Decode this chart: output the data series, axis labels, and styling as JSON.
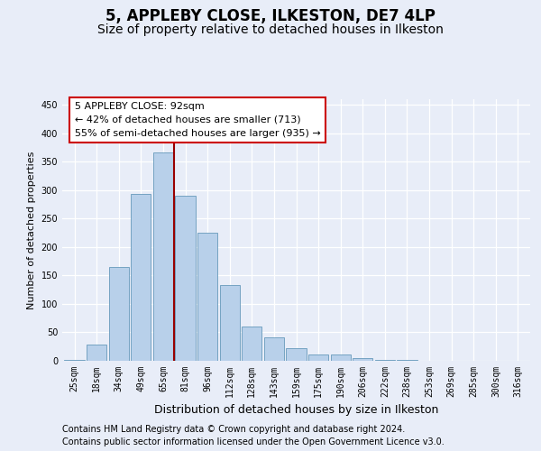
{
  "title": "5, APPLEBY CLOSE, ILKESTON, DE7 4LP",
  "subtitle": "Size of property relative to detached houses in Ilkeston",
  "xlabel": "Distribution of detached houses by size in Ilkeston",
  "ylabel": "Number of detached properties",
  "categories": [
    "25sqm",
    "18sqm",
    "34sqm",
    "49sqm",
    "65sqm",
    "81sqm",
    "96sqm",
    "112sqm",
    "128sqm",
    "143sqm",
    "159sqm",
    "175sqm",
    "190sqm",
    "206sqm",
    "222sqm",
    "238sqm",
    "253sqm",
    "269sqm",
    "285sqm",
    "300sqm",
    "316sqm"
  ],
  "values": [
    2,
    28,
    165,
    293,
    367,
    290,
    226,
    133,
    60,
    42,
    22,
    11,
    11,
    5,
    2,
    1,
    0,
    0,
    0,
    0,
    0
  ],
  "bar_color": "#b8d0ea",
  "bar_edge_color": "#6699bb",
  "vline_color": "#990000",
  "annotation_text": "5 APPLEBY CLOSE: 92sqm\n← 42% of detached houses are smaller (713)\n55% of semi-detached houses are larger (935) →",
  "annotation_box_facecolor": "#ffffff",
  "annotation_box_edgecolor": "#cc0000",
  "ylim": [
    0,
    460
  ],
  "yticks": [
    0,
    50,
    100,
    150,
    200,
    250,
    300,
    350,
    400,
    450
  ],
  "footer_line1": "Contains HM Land Registry data © Crown copyright and database right 2024.",
  "footer_line2": "Contains public sector information licensed under the Open Government Licence v3.0.",
  "bg_color": "#e8edf8",
  "grid_color": "#ffffff",
  "title_fontsize": 12,
  "subtitle_fontsize": 10,
  "ylabel_fontsize": 8,
  "xlabel_fontsize": 9,
  "tick_fontsize": 7,
  "footer_fontsize": 7,
  "annotation_fontsize": 8,
  "vline_x_index": 4
}
